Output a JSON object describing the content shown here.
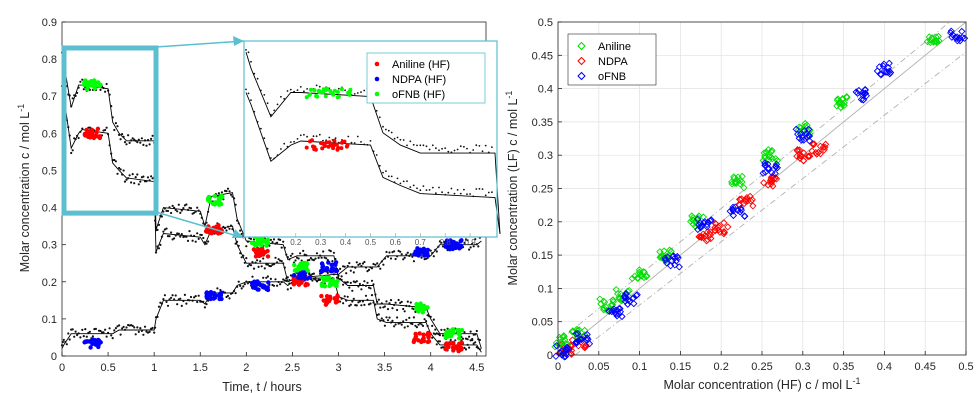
{
  "chart_data": [
    {
      "type": "scatter",
      "title": "",
      "xlabel": "Time, t / hours",
      "ylabel": "Molar concentration  c / mol L",
      "ylabel_superscript": "-1",
      "xlim": [
        0,
        4.6
      ],
      "ylim": [
        0,
        0.9
      ],
      "xticks": [
        "0",
        "0.5",
        "1",
        "1.5",
        "2",
        "2.5",
        "3",
        "3.5",
        "4",
        "4.5"
      ],
      "yticks": [
        "0",
        "0.1",
        "0.2",
        "0.3",
        "0.4",
        "0.5",
        "0.6",
        "0.7",
        "0.8",
        "0.9"
      ],
      "inset_xticks": [
        "0.2",
        "0.3",
        "0.4",
        "0.5",
        "0.6",
        "0.7",
        "0.8",
        "0.9"
      ],
      "inset_xlim": [
        0,
        1
      ],
      "inset_ylim": [
        0.38,
        0.85
      ],
      "zoom_region": {
        "x": [
          0,
          1.02
        ],
        "y": [
          0.385,
          0.83
        ]
      },
      "legend_position": "inset-top-right",
      "series": [
        {
          "name": "Aniline (HF)",
          "color": "#ff0000",
          "clusters": [
            [
              0.33,
              0.6
            ],
            [
              1.65,
              0.34
            ],
            [
              2.15,
              0.28
            ],
            [
              2.6,
              0.2
            ],
            [
              2.9,
              0.15
            ],
            [
              3.9,
              0.05
            ],
            [
              4.25,
              0.025
            ]
          ]
        },
        {
          "name": "NDPA (HF)",
          "color": "#0000ff",
          "clusters": [
            [
              0.33,
              0.035
            ],
            [
              1.65,
              0.16
            ],
            [
              2.15,
              0.19
            ],
            [
              2.6,
              0.22
            ],
            [
              2.9,
              0.24
            ],
            [
              3.9,
              0.28
            ],
            [
              4.25,
              0.3
            ]
          ]
        },
        {
          "name": "oFNB (HF)",
          "color": "#00ff00",
          "clusters": [
            [
              0.33,
              0.73
            ],
            [
              1.65,
              0.42
            ],
            [
              2.15,
              0.31
            ],
            [
              2.6,
              0.24
            ],
            [
              2.9,
              0.2
            ],
            [
              3.9,
              0.13
            ],
            [
              4.25,
              0.06
            ]
          ]
        }
      ],
      "model_lines": [
        {
          "x": [
            0,
            0.02,
            0.1,
            0.18,
            0.22,
            0.5,
            0.55,
            0.62,
            0.7,
            1.0,
            1.02,
            1.1,
            1.5,
            1.55,
            1.62,
            1.85,
            1.9,
            2.0,
            2.4,
            2.45,
            2.55,
            2.95,
            3.0,
            3.1,
            3.38,
            3.42,
            3.52,
            3.95,
            4.0,
            4.1,
            4.5,
            4.55
          ],
          "y": [
            0.83,
            0.79,
            0.67,
            0.73,
            0.73,
            0.72,
            0.63,
            0.6,
            0.58,
            0.58,
            0.34,
            0.4,
            0.39,
            0.35,
            0.43,
            0.44,
            0.37,
            0.31,
            0.3,
            0.26,
            0.27,
            0.27,
            0.21,
            0.19,
            0.19,
            0.14,
            0.14,
            0.13,
            0.1,
            0.06,
            0.06,
            0.02
          ]
        },
        {
          "x": [
            0,
            0.02,
            0.1,
            0.18,
            0.22,
            0.5,
            0.55,
            0.62,
            0.7,
            1.0,
            1.02,
            1.1,
            1.5,
            1.55,
            1.62,
            1.85,
            1.9,
            2.0,
            2.4,
            2.45,
            2.55,
            2.95,
            3.0,
            3.1,
            3.38,
            3.42,
            3.52,
            3.95,
            4.0,
            4.1,
            4.5,
            4.55
          ],
          "y": [
            0.73,
            0.7,
            0.56,
            0.6,
            0.61,
            0.6,
            0.52,
            0.5,
            0.48,
            0.47,
            0.28,
            0.33,
            0.32,
            0.3,
            0.34,
            0.35,
            0.3,
            0.25,
            0.25,
            0.2,
            0.21,
            0.21,
            0.16,
            0.15,
            0.15,
            0.1,
            0.09,
            0.09,
            0.06,
            0.03,
            0.03,
            0.01
          ]
        },
        {
          "x": [
            0,
            0.02,
            0.1,
            0.18,
            0.22,
            0.5,
            0.55,
            0.62,
            0.7,
            1.0,
            1.02,
            1.1,
            1.5,
            1.55,
            1.62,
            1.85,
            1.9,
            2.0,
            2.4,
            2.45,
            2.55,
            2.95,
            3.0,
            3.1,
            3.38,
            3.42,
            3.52,
            3.95,
            4.0,
            4.1,
            4.5,
            4.55
          ],
          "y": [
            0.02,
            0.03,
            0.06,
            0.06,
            0.06,
            0.06,
            0.06,
            0.07,
            0.07,
            0.07,
            0.1,
            0.15,
            0.15,
            0.14,
            0.17,
            0.17,
            0.19,
            0.2,
            0.2,
            0.19,
            0.21,
            0.22,
            0.22,
            0.24,
            0.24,
            0.24,
            0.27,
            0.27,
            0.27,
            0.3,
            0.3,
            0.31
          ]
        }
      ]
    },
    {
      "type": "scatter",
      "title": "",
      "xlabel": "Molar concentration (HF)  c / mol L",
      "xlabel_superscript": "-1",
      "ylabel": "Molar concentration (LF)  c / mol L",
      "ylabel_superscript": "-1",
      "xlim": [
        0,
        0.5
      ],
      "ylim": [
        0,
        0.5
      ],
      "xticks": [
        "0",
        "0.05",
        "0.1",
        "0.15",
        "0.2",
        "0.25",
        "0.3",
        "0.35",
        "0.4",
        "0.45",
        "0.5"
      ],
      "yticks": [
        "0",
        "0.05",
        "0.1",
        "0.15",
        "0.2",
        "0.25",
        "0.3",
        "0.35",
        "0.4",
        "0.45",
        "0.5"
      ],
      "grid": true,
      "legend_position": "top-left",
      "reference_lines": [
        {
          "style": "solid",
          "slope": 1.0,
          "intercept": 0.0
        },
        {
          "style": "dash-dot",
          "slope": 1.0,
          "intercept": 0.02
        },
        {
          "style": "dash-dot",
          "slope": 0.95,
          "intercept": -0.02
        }
      ],
      "series": [
        {
          "name": "Aniline",
          "color": "#00dd00",
          "clusters": [
            [
              0.005,
              0.02
            ],
            [
              0.025,
              0.03
            ],
            [
              0.06,
              0.075
            ],
            [
              0.08,
              0.09
            ],
            [
              0.1,
              0.12
            ],
            [
              0.13,
              0.15
            ],
            [
              0.17,
              0.2
            ],
            [
              0.22,
              0.26
            ],
            [
              0.26,
              0.3
            ],
            [
              0.3,
              0.34
            ],
            [
              0.35,
              0.38
            ],
            [
              0.46,
              0.47
            ]
          ]
        },
        {
          "name": "NDPA",
          "color": "#ff0000",
          "clusters": [
            [
              0.01,
              0.01
            ],
            [
              0.025,
              0.02
            ],
            [
              0.18,
              0.18
            ],
            [
              0.2,
              0.19
            ],
            [
              0.23,
              0.23
            ],
            [
              0.26,
              0.26
            ],
            [
              0.3,
              0.3
            ],
            [
              0.32,
              0.31
            ]
          ]
        },
        {
          "name": "oFNB",
          "color": "#0000ff",
          "clusters": [
            [
              0.005,
              0.005
            ],
            [
              0.03,
              0.025
            ],
            [
              0.07,
              0.065
            ],
            [
              0.09,
              0.085
            ],
            [
              0.14,
              0.14
            ],
            [
              0.18,
              0.195
            ],
            [
              0.22,
              0.215
            ],
            [
              0.26,
              0.28
            ],
            [
              0.3,
              0.33
            ],
            [
              0.37,
              0.39
            ],
            [
              0.4,
              0.43
            ],
            [
              0.49,
              0.48
            ]
          ]
        }
      ]
    }
  ]
}
